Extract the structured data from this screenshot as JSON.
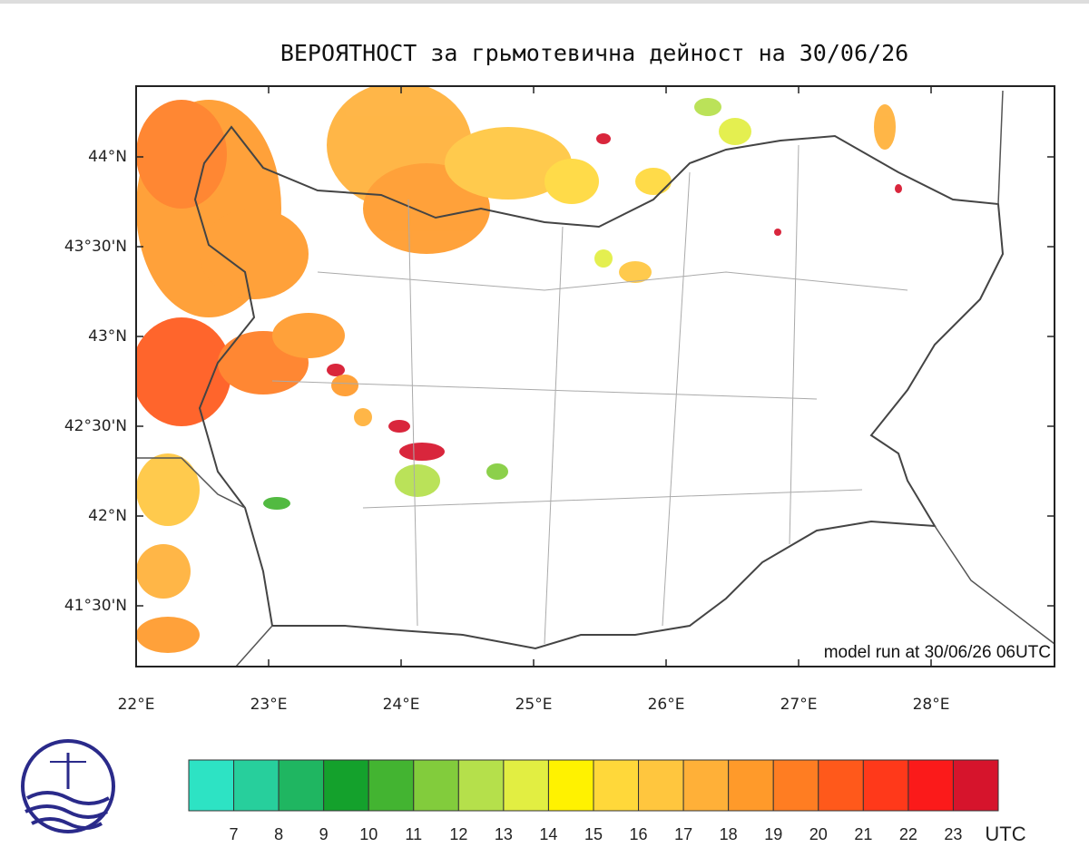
{
  "title": "ВЕРОЯТНОСТ за грьмотевична дейност на 30/06/26",
  "model_run": "model run at 30/06/26 06UTC",
  "lon_ticks": [
    "22°E",
    "23°E",
    "24°E",
    "25°E",
    "26°E",
    "27°E",
    "28°E"
  ],
  "lat_ticks": [
    "44°N",
    "43°30'N",
    "43°N",
    "42°30'N",
    "42°N",
    "41°30'N"
  ],
  "colorbar": {
    "labels": [
      7,
      8,
      9,
      10,
      11,
      12,
      13,
      14,
      15,
      16,
      17,
      18,
      19,
      20,
      21,
      22,
      23
    ],
    "colors": [
      "#2de3c4",
      "#27cf9c",
      "#1fb661",
      "#14a12c",
      "#43b431",
      "#82cc3c",
      "#b5e04b",
      "#e2ee42",
      "#fff200",
      "#ffd83a",
      "#ffc63e",
      "#ffb038",
      "#ff9a2a",
      "#ff7d22",
      "#ff591b",
      "#ff391a",
      "#fb1a1a",
      "#d6142c"
    ],
    "unit": "UTC"
  }
}
